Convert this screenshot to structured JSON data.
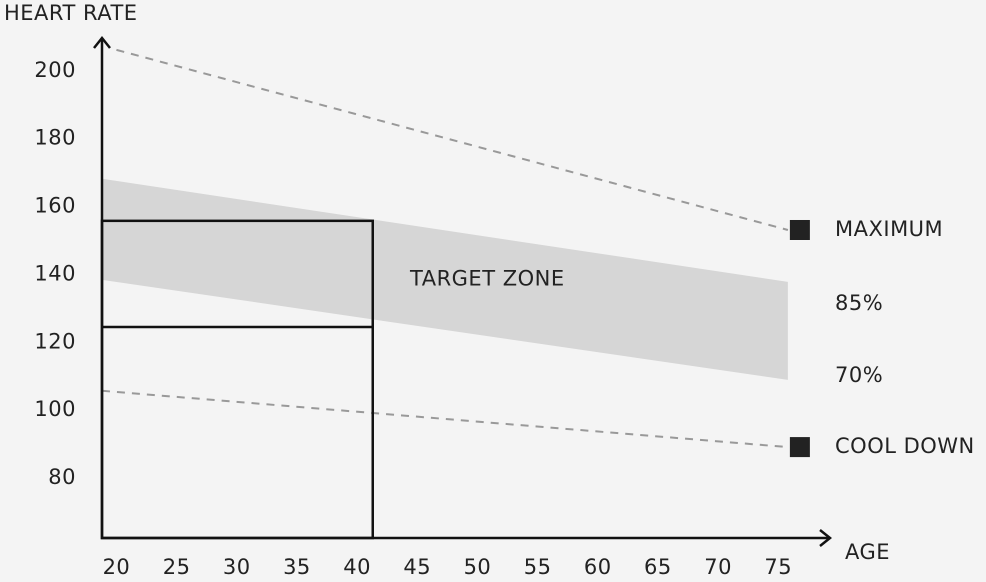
{
  "chart_data": {
    "type": "line",
    "y_label": "HEART RATE",
    "x_label": "AGE",
    "xlim": [
      18.8,
      79.3
    ],
    "ylim": [
      62.3,
      209.7
    ],
    "xticks": [
      20,
      25,
      30,
      35,
      40,
      45,
      50,
      55,
      60,
      65,
      70,
      75
    ],
    "yticks": [
      80,
      100,
      120,
      140,
      160,
      180,
      200
    ],
    "series": [
      {
        "name": "MAXIMUM",
        "color": "#999999",
        "marker_color": "#222222",
        "x": [
          20,
          75.8
        ],
        "values": [
          206.2,
          153.1
        ]
      },
      {
        "name": "COOL DOWN",
        "color": "#999999",
        "marker_color": "#222222",
        "x": [
          18.8,
          75.8
        ],
        "values": [
          105.7,
          89.1
        ]
      }
    ],
    "band": {
      "name": "TARGET ZONE",
      "color": "#d6d6d6",
      "x": [
        18.8,
        75.8
      ],
      "upper": [
        168.2,
        137.8
      ],
      "lower": [
        138.4,
        108.9
      ],
      "upper_label": "85%",
      "lower_label": "70%"
    },
    "highlight": {
      "x": [
        18.8,
        41.3
      ],
      "values": [
        155.8,
        124.5
      ]
    }
  }
}
